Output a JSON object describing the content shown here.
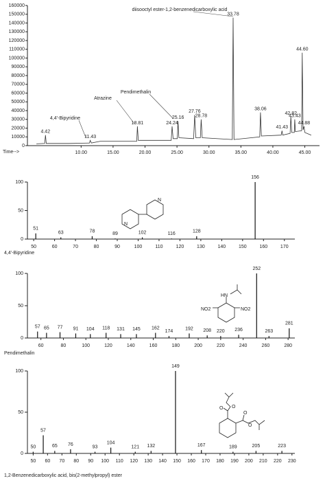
{
  "chart_data": [
    {
      "type": "line",
      "xlabel": "Time-->",
      "annotations": [
        "diisooctyl ester-1,2-benzenedicarboxylic acid",
        "4,4'-Bipyridine",
        "Atrazine",
        "Pendimethalin"
      ],
      "x": [
        3,
        4.3,
        4.42,
        4.55,
        8,
        11.3,
        11.43,
        11.6,
        13,
        18.7,
        18.81,
        18.95,
        24.1,
        24.24,
        24.4,
        25.05,
        25.16,
        25.3,
        27.6,
        27.76,
        27.95,
        28.65,
        28.78,
        28.95,
        33.65,
        33.78,
        33.92,
        37.95,
        38.06,
        38.2,
        41.3,
        41.43,
        41.55,
        42.7,
        42.82,
        42.95,
        43.35,
        43.43,
        43.52,
        44.5,
        44.6,
        44.72,
        44.88,
        45,
        46
      ],
      "values": [
        2000,
        2500,
        12000,
        2500,
        2500,
        3000,
        6000,
        3000,
        5000,
        5000,
        22000,
        6000,
        6000,
        22000,
        8000,
        8000,
        28000,
        9000,
        8000,
        35000,
        9000,
        9000,
        30000,
        9000,
        7000,
        146000,
        7000,
        10000,
        38000,
        11000,
        12000,
        17000,
        12000,
        14000,
        33000,
        15000,
        15000,
        30000,
        16000,
        17000,
        106000,
        18000,
        22000,
        15000,
        12000
      ],
      "color": "#333333",
      "peak_labels": [
        4.42,
        11.43,
        18.81,
        24.24,
        25.16,
        27.76,
        28.78,
        33.78,
        38.06,
        41.43,
        42.82,
        43.43,
        {
          "value": 44.6,
          "label": "44.60"
        },
        44.88
      ],
      "xlim": [
        1.6,
        47.3
      ],
      "xticks": [
        {
          "value": 10,
          "label": "10.00"
        },
        {
          "value": 15,
          "label": "15.00"
        },
        {
          "value": 20,
          "label": "20.00"
        },
        {
          "value": 25,
          "label": "25.00"
        },
        {
          "value": 30,
          "label": "30.00"
        },
        {
          "value": 35,
          "label": "35.00"
        },
        {
          "value": 40,
          "label": "40.00"
        },
        {
          "value": 45,
          "label": "45.00"
        }
      ],
      "ylim": [
        0,
        160000
      ],
      "yticks": [
        0,
        10000,
        20000,
        30000,
        40000,
        50000,
        60000,
        70000,
        80000,
        90000,
        100000,
        110000,
        120000,
        130000,
        140000,
        150000,
        160000
      ]
    },
    {
      "type": "bar",
      "caption": "4,4'-Bipyridine",
      "structure_atoms": [
        "N",
        "N"
      ],
      "x": [
        51,
        63,
        78,
        89,
        102,
        116,
        128,
        156
      ],
      "values": [
        10,
        3,
        5,
        1,
        3,
        1,
        5,
        100
      ],
      "color": "#111111",
      "xlim": [
        47,
        175
      ],
      "xticks": [
        50,
        60,
        70,
        80,
        90,
        100,
        110,
        120,
        130,
        140,
        150,
        160,
        170
      ],
      "ylim": [
        0,
        100
      ],
      "yticks": [
        0,
        50,
        100
      ]
    },
    {
      "type": "bar",
      "caption": "Pendimethalin",
      "structure_atoms": [
        "HN",
        "NO2",
        "NO2"
      ],
      "x": [
        57,
        65,
        77,
        91,
        104,
        118,
        131,
        145,
        162,
        174,
        192,
        208,
        220,
        236,
        252,
        263,
        281
      ],
      "values": [
        10,
        8,
        9,
        7,
        6,
        8,
        6,
        6,
        8,
        3,
        7,
        4,
        3,
        5,
        100,
        3,
        15
      ],
      "color": "#111111",
      "xlim": [
        48,
        286
      ],
      "xticks": [
        60,
        80,
        100,
        120,
        140,
        160,
        180,
        200,
        220,
        240,
        260,
        280
      ],
      "ylim": [
        0,
        100
      ],
      "yticks": [
        0,
        50,
        100
      ]
    },
    {
      "type": "bar",
      "caption": "1,2-Benzenedicarboxylic acid, bis(2-methylpropyl) ester",
      "structure_atoms": [
        "O",
        "O",
        "O",
        "O"
      ],
      "x": [
        50,
        57,
        65,
        76,
        93,
        104,
        121,
        132,
        149,
        167,
        189,
        205,
        223
      ],
      "values": [
        2,
        22,
        3,
        5,
        2,
        7,
        2,
        3,
        100,
        4,
        2,
        3,
        3
      ],
      "color": "#111111",
      "xlim": [
        46,
        232
      ],
      "xticks": [
        50,
        60,
        70,
        80,
        90,
        100,
        110,
        120,
        130,
        140,
        150,
        160,
        170,
        180,
        190,
        200,
        210,
        220,
        230
      ],
      "ylim": [
        0,
        100
      ],
      "yticks": [
        0,
        50,
        100
      ]
    }
  ]
}
